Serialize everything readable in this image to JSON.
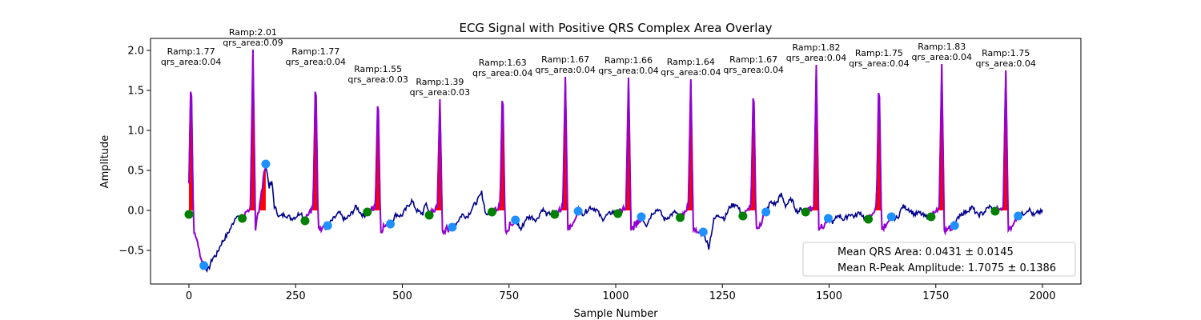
{
  "chart_data": {
    "type": "line",
    "title": "ECG Signal with Positive QRS Complex Area Overlay",
    "xlabel": "Sample Number",
    "ylabel": "Amplitude",
    "xlim": [
      -90,
      2090
    ],
    "ylim": [
      -0.92,
      2.15
    ],
    "xticks": [
      0,
      250,
      500,
      750,
      1000,
      1250,
      1500,
      1750,
      2000
    ],
    "yticks": [
      -0.5,
      0.0,
      0.5,
      1.0,
      1.5,
      2.0
    ],
    "xtick_labels": [
      "0",
      "250",
      "500",
      "750",
      "1000",
      "1250",
      "1500",
      "1750",
      "2000"
    ],
    "ytick_labels": [
      "−0.5",
      "0.0",
      "0.5",
      "1.0",
      "1.5",
      "2.0"
    ],
    "grid": false,
    "colors": {
      "signal": "#00008b",
      "qrs_segment": "#9400d3",
      "qrs_area_fill": "#ff0000",
      "onset_marker": "#008000",
      "offset_marker": "#1e90ff"
    },
    "beats": [
      {
        "r": 5,
        "ramp": 1.77,
        "onset": [
          0,
          -0.05
        ],
        "offset": [
          35,
          -0.69
        ],
        "label_ramp": "Ramp:1.77",
        "label_area": "qrs_area:0.04"
      },
      {
        "r": 150,
        "ramp": 2.01,
        "onset": [
          125,
          -0.1
        ],
        "offset": [
          180,
          0.58
        ],
        "label_ramp": "Ramp:2.01",
        "label_area": "qrs_area:0.09"
      },
      {
        "r": 297,
        "ramp": 1.77,
        "onset": [
          272,
          -0.13
        ],
        "offset": [
          325,
          -0.19
        ],
        "label_ramp": "Ramp:1.77",
        "label_area": "qrs_area:0.04"
      },
      {
        "r": 443,
        "ramp": 1.55,
        "onset": [
          418,
          -0.02
        ],
        "offset": [
          472,
          -0.17
        ],
        "label_ramp": "Ramp:1.55",
        "label_area": "qrs_area:0.03"
      },
      {
        "r": 588,
        "ramp": 1.39,
        "onset": [
          563,
          -0.06
        ],
        "offset": [
          617,
          -0.21
        ],
        "label_ramp": "Ramp:1.39",
        "label_area": "qrs_area:0.03"
      },
      {
        "r": 735,
        "ramp": 1.63,
        "onset": [
          710,
          -0.02
        ],
        "offset": [
          765,
          -0.12
        ],
        "label_ramp": "Ramp:1.63",
        "label_area": "qrs_area:0.04"
      },
      {
        "r": 882,
        "ramp": 1.67,
        "onset": [
          857,
          -0.05
        ],
        "offset": [
          912,
          -0.01
        ],
        "label_ramp": "Ramp:1.67",
        "label_area": "qrs_area:0.04"
      },
      {
        "r": 1030,
        "ramp": 1.66,
        "onset": [
          1005,
          -0.04
        ],
        "offset": [
          1060,
          -0.08
        ],
        "label_ramp": "Ramp:1.66",
        "label_area": "qrs_area:0.04"
      },
      {
        "r": 1176,
        "ramp": 1.64,
        "onset": [
          1151,
          -0.09
        ],
        "offset": [
          1205,
          -0.27
        ],
        "label_ramp": "Ramp:1.64",
        "label_area": "qrs_area:0.04"
      },
      {
        "r": 1323,
        "ramp": 1.67,
        "onset": [
          1298,
          -0.07
        ],
        "offset": [
          1352,
          -0.02
        ],
        "label_ramp": "Ramp:1.67",
        "label_area": "qrs_area:0.04"
      },
      {
        "r": 1470,
        "ramp": 1.82,
        "onset": [
          1445,
          -0.02
        ],
        "offset": [
          1498,
          -0.1
        ],
        "label_ramp": "Ramp:1.82",
        "label_area": "qrs_area:0.04"
      },
      {
        "r": 1617,
        "ramp": 1.75,
        "onset": [
          1592,
          -0.11
        ],
        "offset": [
          1646,
          -0.08
        ],
        "label_ramp": "Ramp:1.75",
        "label_area": "qrs_area:0.04"
      },
      {
        "r": 1764,
        "ramp": 1.83,
        "onset": [
          1739,
          -0.08
        ],
        "offset": [
          1794,
          -0.19
        ],
        "label_ramp": "Ramp:1.83",
        "label_area": "qrs_area:0.04"
      },
      {
        "r": 1914,
        "ramp": 1.75,
        "onset": [
          1889,
          -0.01
        ],
        "offset": [
          1943,
          -0.07
        ],
        "label_ramp": "Ramp:1.75",
        "label_area": "qrs_area:0.04"
      }
    ],
    "baseline_points": [
      [
        0,
        -0.05
      ],
      [
        20,
        -0.3
      ],
      [
        35,
        -0.69
      ],
      [
        45,
        -0.75
      ],
      [
        55,
        -0.6
      ],
      [
        65,
        -0.55
      ],
      [
        75,
        -0.42
      ],
      [
        90,
        -0.3
      ],
      [
        100,
        -0.2
      ],
      [
        112,
        -0.05
      ],
      [
        118,
        -0.1
      ],
      [
        125,
        -0.1
      ],
      [
        180,
        0.58
      ],
      [
        188,
        0.3
      ],
      [
        195,
        0.35
      ],
      [
        200,
        0.05
      ],
      [
        212,
        -0.08
      ],
      [
        225,
        -0.05
      ],
      [
        240,
        -0.1
      ],
      [
        250,
        -0.08
      ],
      [
        262,
        -0.02
      ],
      [
        272,
        -0.13
      ],
      [
        325,
        -0.19
      ],
      [
        340,
        -0.1
      ],
      [
        352,
        -0.03
      ],
      [
        365,
        -0.12
      ],
      [
        378,
        -0.06
      ],
      [
        392,
        0.05
      ],
      [
        402,
        -0.03
      ],
      [
        410,
        -0.07
      ],
      [
        418,
        -0.02
      ],
      [
        472,
        -0.17
      ],
      [
        485,
        -0.05
      ],
      [
        498,
        -0.07
      ],
      [
        510,
        0.03
      ],
      [
        522,
        0.12
      ],
      [
        535,
        -0.01
      ],
      [
        548,
        -0.04
      ],
      [
        556,
        0.1
      ],
      [
        563,
        -0.06
      ],
      [
        617,
        -0.21
      ],
      [
        628,
        -0.15
      ],
      [
        640,
        -0.05
      ],
      [
        652,
        -0.08
      ],
      [
        665,
        0.04
      ],
      [
        676,
        0.12
      ],
      [
        686,
        0.22
      ],
      [
        696,
        -0.05
      ],
      [
        710,
        -0.02
      ],
      [
        765,
        -0.12
      ],
      [
        778,
        -0.24
      ],
      [
        790,
        -0.1
      ],
      [
        802,
        -0.08
      ],
      [
        815,
        -0.12
      ],
      [
        828,
        0.02
      ],
      [
        840,
        -0.06
      ],
      [
        850,
        -0.02
      ],
      [
        857,
        -0.05
      ],
      [
        912,
        -0.01
      ],
      [
        925,
        -0.04
      ],
      [
        940,
        0.04
      ],
      [
        955,
        0.01
      ],
      [
        968,
        -0.11
      ],
      [
        980,
        -0.06
      ],
      [
        992,
        -0.02
      ],
      [
        1005,
        -0.04
      ],
      [
        1060,
        -0.08
      ],
      [
        1072,
        -0.18
      ],
      [
        1086,
        -0.03
      ],
      [
        1100,
        0.02
      ],
      [
        1115,
        -0.12
      ],
      [
        1128,
        -0.06
      ],
      [
        1140,
        -0.02
      ],
      [
        1151,
        -0.09
      ],
      [
        1205,
        -0.27
      ],
      [
        1218,
        -0.46
      ],
      [
        1230,
        -0.12
      ],
      [
        1240,
        -0.05
      ],
      [
        1255,
        -0.1
      ],
      [
        1268,
        0.05
      ],
      [
        1282,
        0.08
      ],
      [
        1298,
        -0.07
      ],
      [
        1352,
        -0.02
      ],
      [
        1362,
        0.1
      ],
      [
        1375,
        0.08
      ],
      [
        1388,
        0.2
      ],
      [
        1398,
        0.06
      ],
      [
        1412,
        0.14
      ],
      [
        1425,
        -0.02
      ],
      [
        1436,
        0.02
      ],
      [
        1445,
        -0.02
      ],
      [
        1498,
        -0.1
      ],
      [
        1510,
        -0.15
      ],
      [
        1522,
        -0.05
      ],
      [
        1535,
        -0.12
      ],
      [
        1548,
        -0.04
      ],
      [
        1560,
        -0.08
      ],
      [
        1572,
        -0.02
      ],
      [
        1585,
        -0.11
      ],
      [
        1592,
        -0.11
      ],
      [
        1646,
        -0.08
      ],
      [
        1660,
        -0.1
      ],
      [
        1672,
        0.05
      ],
      [
        1686,
        0.02
      ],
      [
        1700,
        -0.05
      ],
      [
        1712,
        -0.03
      ],
      [
        1725,
        -0.08
      ],
      [
        1739,
        -0.08
      ],
      [
        1794,
        -0.19
      ],
      [
        1806,
        -0.05
      ],
      [
        1820,
        -0.02
      ],
      [
        1835,
        0.04
      ],
      [
        1848,
        -0.06
      ],
      [
        1862,
        -0.03
      ],
      [
        1875,
        0.05
      ],
      [
        1889,
        -0.01
      ],
      [
        1943,
        -0.07
      ],
      [
        1955,
        -0.04
      ],
      [
        1968,
        0.02
      ],
      [
        1980,
        -0.07
      ],
      [
        1990,
        -0.02
      ],
      [
        2000,
        -0.02
      ]
    ],
    "legend": {
      "position": "lower right",
      "entries": [
        "Mean QRS Area: 0.0431 ± 0.0145",
        "Mean R-Peak Amplitude: 1.7075 ± 0.1386"
      ]
    }
  }
}
